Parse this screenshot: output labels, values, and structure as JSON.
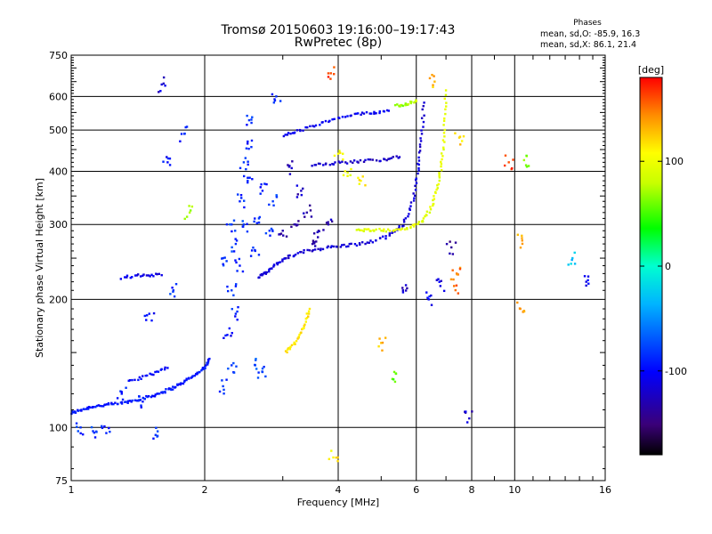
{
  "chart_data": {
    "type": "scatter",
    "title": "Tromsø 20150603 19:16:00–19:17:43",
    "subtitle": "RwPretec (8p)",
    "xlabel": "Frequency [MHz]",
    "ylabel": "Stationary phase Virtual Height [km]",
    "x_scale": "log",
    "y_scale": "log",
    "xlim": [
      1,
      16
    ],
    "ylim": [
      75,
      750
    ],
    "x_ticks": [
      1,
      2,
      4,
      6,
      8,
      10,
      16
    ],
    "y_ticks": [
      75,
      100,
      200,
      300,
      400,
      500,
      600,
      750
    ],
    "grid": true,
    "stats": {
      "title": "Phases",
      "o_line": "mean, sd,O: -85.9, 16.3",
      "x_line": "mean, sd,X: 86.1, 21.4"
    },
    "colorbar": {
      "label": "[deg]",
      "range": [
        -180,
        180
      ],
      "ticks": [
        100,
        0,
        -100
      ],
      "tick_labels": [
        "100",
        "0",
        "-100"
      ],
      "colormap": "rainbow"
    },
    "series": [
      {
        "trace": [
          {
            "x": 1.0,
            "y": 108,
            "p": -95
          },
          {
            "x": 1.05,
            "y": 110,
            "p": -95
          },
          {
            "x": 1.12,
            "y": 112,
            "p": -95
          },
          {
            "x": 1.2,
            "y": 113,
            "p": -95
          },
          {
            "x": 1.3,
            "y": 114,
            "p": -95
          },
          {
            "x": 1.4,
            "y": 116,
            "p": -95
          },
          {
            "x": 1.5,
            "y": 118,
            "p": -95
          },
          {
            "x": 1.6,
            "y": 121,
            "p": -95
          },
          {
            "x": 1.7,
            "y": 124,
            "p": -95
          },
          {
            "x": 1.8,
            "y": 128,
            "p": -95
          },
          {
            "x": 1.9,
            "y": 133,
            "p": -95
          },
          {
            "x": 2.0,
            "y": 138,
            "p": -95
          },
          {
            "x": 2.05,
            "y": 145,
            "p": -95
          }
        ]
      },
      {
        "trace": [
          {
            "x": 2.65,
            "y": 225,
            "p": -110
          },
          {
            "x": 2.75,
            "y": 232,
            "p": -112
          },
          {
            "x": 2.9,
            "y": 242,
            "p": -115
          },
          {
            "x": 3.1,
            "y": 252,
            "p": -115
          },
          {
            "x": 3.4,
            "y": 260,
            "p": -115
          },
          {
            "x": 3.8,
            "y": 265,
            "p": -115
          },
          {
            "x": 4.2,
            "y": 268,
            "p": -115
          },
          {
            "x": 4.7,
            "y": 272,
            "p": -115
          },
          {
            "x": 5.2,
            "y": 282,
            "p": -115
          },
          {
            "x": 5.6,
            "y": 300,
            "p": -115
          },
          {
            "x": 5.9,
            "y": 340,
            "p": -115
          },
          {
            "x": 6.05,
            "y": 400,
            "p": -115
          },
          {
            "x": 6.15,
            "y": 470,
            "p": -115
          },
          {
            "x": 6.25,
            "y": 580,
            "p": -115
          }
        ]
      },
      {
        "trace": [
          {
            "x": 4.4,
            "y": 290,
            "p": 95
          },
          {
            "x": 4.8,
            "y": 292,
            "p": 95
          },
          {
            "x": 5.3,
            "y": 290,
            "p": 95
          },
          {
            "x": 5.8,
            "y": 295,
            "p": 95
          },
          {
            "x": 6.2,
            "y": 305,
            "p": 95
          },
          {
            "x": 6.5,
            "y": 330,
            "p": 95
          },
          {
            "x": 6.7,
            "y": 370,
            "p": 95
          },
          {
            "x": 6.85,
            "y": 420,
            "p": 95
          },
          {
            "x": 6.95,
            "y": 500,
            "p": 95
          },
          {
            "x": 7.0,
            "y": 620,
            "p": 95
          }
        ]
      },
      {
        "trace": [
          {
            "x": 3.0,
            "y": 485,
            "p": -105
          },
          {
            "x": 3.3,
            "y": 500,
            "p": -105
          },
          {
            "x": 3.7,
            "y": 520,
            "p": -105
          },
          {
            "x": 4.2,
            "y": 540,
            "p": -105
          },
          {
            "x": 4.7,
            "y": 548,
            "p": -105
          },
          {
            "x": 5.2,
            "y": 555,
            "p": -105
          }
        ]
      },
      {
        "trace": [
          {
            "x": 3.5,
            "y": 415,
            "p": -120
          },
          {
            "x": 3.9,
            "y": 418,
            "p": -120
          },
          {
            "x": 4.4,
            "y": 422,
            "p": -120
          },
          {
            "x": 5.0,
            "y": 426,
            "p": -120
          },
          {
            "x": 5.5,
            "y": 432,
            "p": -120
          }
        ]
      },
      {
        "trace": [
          {
            "x": 1.3,
            "y": 225,
            "p": -110
          },
          {
            "x": 1.45,
            "y": 228,
            "p": -110
          },
          {
            "x": 1.6,
            "y": 228,
            "p": -110
          }
        ]
      },
      {
        "trace": [
          {
            "x": 1.35,
            "y": 128,
            "p": -100
          },
          {
            "x": 1.5,
            "y": 133,
            "p": -100
          },
          {
            "x": 1.65,
            "y": 138,
            "p": -100
          }
        ]
      },
      {
        "trace": [
          {
            "x": 3.05,
            "y": 150,
            "p": 115
          },
          {
            "x": 3.2,
            "y": 158,
            "p": 115
          },
          {
            "x": 3.35,
            "y": 172,
            "p": 115
          },
          {
            "x": 3.45,
            "y": 190,
            "p": 115
          }
        ]
      },
      {
        "trace": [
          {
            "x": 5.4,
            "y": 570,
            "p": 70
          },
          {
            "x": 5.7,
            "y": 575,
            "p": 65
          },
          {
            "x": 6.0,
            "y": 585,
            "p": 90
          }
        ]
      },
      {
        "cloud": true,
        "points": [
          {
            "x": 2.2,
            "y": 125,
            "p": -80
          },
          {
            "x": 2.3,
            "y": 140,
            "p": -85
          },
          {
            "x": 2.25,
            "y": 165,
            "p": -100
          },
          {
            "x": 2.35,
            "y": 185,
            "p": -90
          },
          {
            "x": 2.3,
            "y": 210,
            "p": -80
          },
          {
            "x": 2.4,
            "y": 240,
            "p": -95
          },
          {
            "x": 2.35,
            "y": 270,
            "p": -85
          },
          {
            "x": 2.45,
            "y": 300,
            "p": -80
          },
          {
            "x": 2.4,
            "y": 340,
            "p": -90
          },
          {
            "x": 2.5,
            "y": 380,
            "p": -85
          },
          {
            "x": 2.45,
            "y": 420,
            "p": -80
          },
          {
            "x": 2.5,
            "y": 470,
            "p": -95
          },
          {
            "x": 2.55,
            "y": 520,
            "p": -85
          },
          {
            "x": 2.6,
            "y": 260,
            "p": -90
          },
          {
            "x": 2.65,
            "y": 310,
            "p": -80
          },
          {
            "x": 2.7,
            "y": 360,
            "p": -95
          },
          {
            "x": 2.6,
            "y": 140,
            "p": -75
          },
          {
            "x": 2.7,
            "y": 135,
            "p": -80
          },
          {
            "x": 2.8,
            "y": 290,
            "p": -85
          },
          {
            "x": 2.85,
            "y": 340,
            "p": -80
          },
          {
            "x": 2.3,
            "y": 300,
            "p": -85
          },
          {
            "x": 2.2,
            "y": 250,
            "p": -80
          },
          {
            "x": 3.2,
            "y": 300,
            "p": -130
          },
          {
            "x": 3.4,
            "y": 320,
            "p": -135
          },
          {
            "x": 3.6,
            "y": 280,
            "p": -130
          },
          {
            "x": 3.3,
            "y": 360,
            "p": -125
          },
          {
            "x": 3.8,
            "y": 300,
            "p": -130
          },
          {
            "x": 3.5,
            "y": 270,
            "p": -135
          },
          {
            "x": 3.1,
            "y": 410,
            "p": -125
          },
          {
            "x": 3.0,
            "y": 290,
            "p": -130
          },
          {
            "x": 1.05,
            "y": 100,
            "p": -85
          },
          {
            "x": 1.12,
            "y": 98,
            "p": -85
          },
          {
            "x": 1.2,
            "y": 97,
            "p": -90
          },
          {
            "x": 1.55,
            "y": 96,
            "p": -85
          },
          {
            "x": 1.5,
            "y": 185,
            "p": -95
          },
          {
            "x": 1.7,
            "y": 210,
            "p": -85
          },
          {
            "x": 1.65,
            "y": 420,
            "p": -100
          },
          {
            "x": 1.8,
            "y": 490,
            "p": -95
          },
          {
            "x": 1.85,
            "y": 320,
            "p": 75
          },
          {
            "x": 1.6,
            "y": 640,
            "p": -115
          },
          {
            "x": 1.45,
            "y": 115,
            "p": -95
          },
          {
            "x": 1.3,
            "y": 120,
            "p": -95
          },
          {
            "x": 7.2,
            "y": 265,
            "p": -140
          },
          {
            "x": 7.3,
            "y": 215,
            "p": 150
          },
          {
            "x": 10.3,
            "y": 190,
            "p": 140
          },
          {
            "x": 10.4,
            "y": 275,
            "p": 140
          },
          {
            "x": 10.5,
            "y": 425,
            "p": 70
          },
          {
            "x": 9.7,
            "y": 420,
            "p": 160
          },
          {
            "x": 13.5,
            "y": 250,
            "p": -30
          },
          {
            "x": 14.5,
            "y": 220,
            "p": -110
          },
          {
            "x": 7.5,
            "y": 480,
            "p": 120
          },
          {
            "x": 7.9,
            "y": 105,
            "p": -120
          },
          {
            "x": 6.6,
            "y": 650,
            "p": 130
          },
          {
            "x": 4.2,
            "y": 390,
            "p": 100
          },
          {
            "x": 4.5,
            "y": 380,
            "p": 110
          },
          {
            "x": 4.0,
            "y": 440,
            "p": 105
          },
          {
            "x": 3.85,
            "y": 680,
            "p": 160
          },
          {
            "x": 3.9,
            "y": 85,
            "p": 110
          },
          {
            "x": 5.0,
            "y": 158,
            "p": 125
          },
          {
            "x": 5.3,
            "y": 130,
            "p": 60
          },
          {
            "x": 6.4,
            "y": 200,
            "p": -100
          },
          {
            "x": 6.8,
            "y": 215,
            "p": -110
          },
          {
            "x": 2.9,
            "y": 600,
            "p": -85
          },
          {
            "x": 7.4,
            "y": 230,
            "p": 150
          },
          {
            "x": 5.6,
            "y": 210,
            "p": -120
          }
        ]
      }
    ]
  },
  "colors": {
    "grid": "#000000",
    "background": "#ffffff"
  }
}
